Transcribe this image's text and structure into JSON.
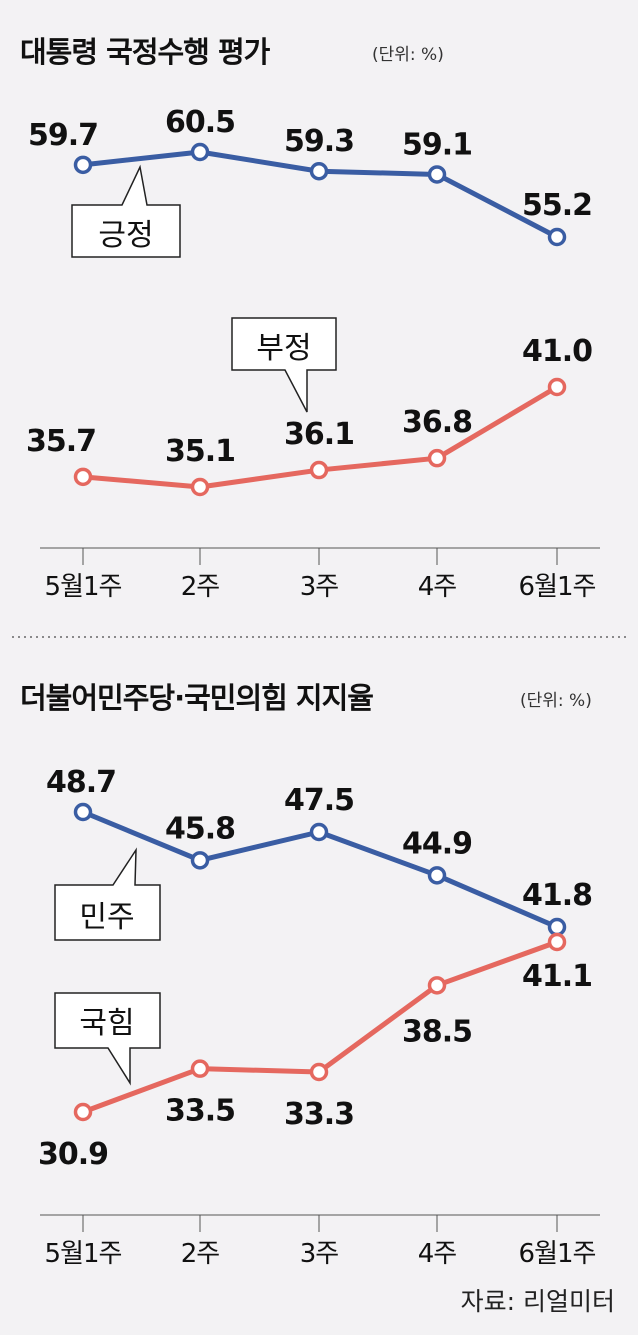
{
  "colors": {
    "positive": "#3a5da3",
    "negative": "#e5685f",
    "axis": "#555555",
    "background": "#f3f2f4"
  },
  "source": "자료: 리얼미터",
  "chart_data": [
    {
      "type": "line",
      "title": "대통령 국정수행 평가",
      "unit": "(단위: %)",
      "categories": [
        "5월1주",
        "2주",
        "3주",
        "4주",
        "6월1주"
      ],
      "series": [
        {
          "name": "긍정",
          "values": [
            59.7,
            60.5,
            59.3,
            59.1,
            55.2
          ],
          "color": "#3a5da3"
        },
        {
          "name": "부정",
          "values": [
            35.7,
            35.1,
            36.1,
            36.8,
            41.0
          ],
          "color": "#e5685f"
        }
      ]
    },
    {
      "type": "line",
      "title": "더불어민주당·국민의힘 지지율",
      "unit": "(단위: %)",
      "categories": [
        "5월1주",
        "2주",
        "3주",
        "4주",
        "6월1주"
      ],
      "series": [
        {
          "name": "민주",
          "values": [
            48.7,
            45.8,
            47.5,
            44.9,
            41.8
          ],
          "color": "#3a5da3"
        },
        {
          "name": "국힘",
          "values": [
            30.9,
            33.5,
            33.3,
            38.5,
            41.1
          ],
          "color": "#e5685f"
        }
      ]
    }
  ]
}
